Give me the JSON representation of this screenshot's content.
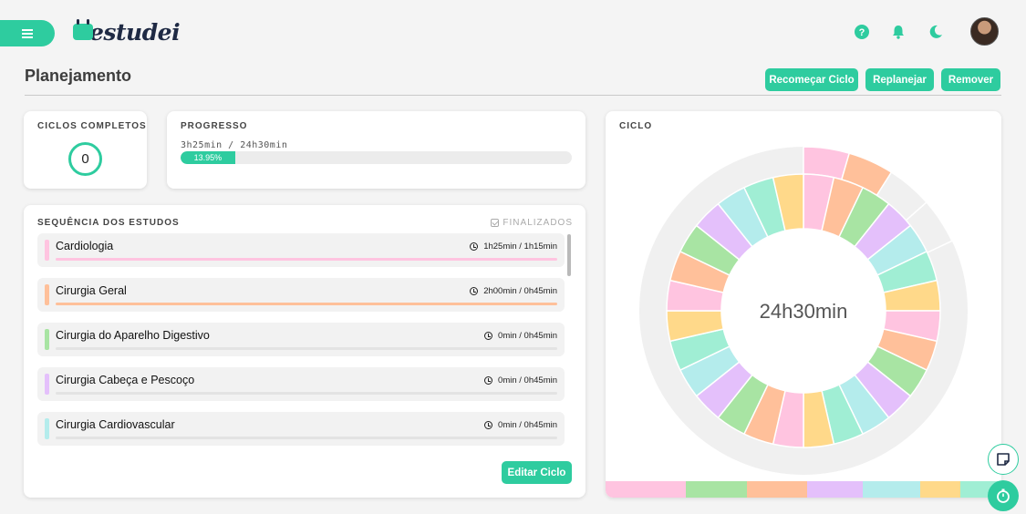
{
  "app": {
    "logo_text": "estudei"
  },
  "page": {
    "title": "Planejamento"
  },
  "actions": {
    "restart": "Recomeçar Ciclo",
    "replan": "Replanejar",
    "remove": "Remover"
  },
  "ciclos": {
    "label": "CICLOS COMPLETOS",
    "value": "0"
  },
  "progresso": {
    "label": "PROGRESSO",
    "text": "3h25min / 24h30min",
    "percent_label": "13.95%",
    "percent": 13.95
  },
  "sequencia": {
    "label": "SEQUÊNCIA DOS ESTUDOS",
    "finalizados": "FINALIZADOS",
    "edit_label": "Editar Ciclo",
    "items": [
      {
        "name": "Cardiologia",
        "time": "1h25min / 1h15min",
        "color": "#ffc4e0",
        "progress": 1.0
      },
      {
        "name": "Cirurgia Geral",
        "time": "2h00min / 0h45min",
        "color": "#ffc09a",
        "progress": 1.0
      },
      {
        "name": "Cirurgia do Aparelho Digestivo",
        "time": "0min / 0h45min",
        "color": "#a8e4a3",
        "progress": 0
      },
      {
        "name": "Cirurgia Cabeça e Pescoço",
        "time": "0min / 0h45min",
        "color": "#e4c0fb",
        "progress": 0
      },
      {
        "name": "Cirurgia Cardiovascular",
        "time": "0min / 0h45min",
        "color": "#b4ecec",
        "progress": 0
      }
    ]
  },
  "ciclo": {
    "label": "CICLO",
    "center_text": "24h30min"
  },
  "colors": {
    "accent": "#2ecc9f",
    "dark": "#1f2a44"
  },
  "icons": [
    "menu-icon",
    "help-icon",
    "bell-icon",
    "moon-icon",
    "avatar",
    "note-icon",
    "timer-icon"
  ]
}
